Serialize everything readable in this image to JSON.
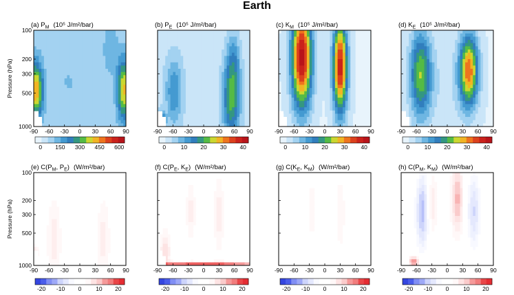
{
  "figure": {
    "title": "Earth",
    "ylabel": "Pressure (hPa)"
  },
  "colors": {
    "positive_low": "#dbeefb",
    "positive_mid": "#4aa3d8",
    "positive_green": "#3bb54a",
    "positive_yellow": "#f2e029",
    "positive_red": "#b8141a",
    "diverging_neg": "#1f2fd6",
    "diverging_pos": "#e0141e"
  },
  "chart_data": [
    {
      "type": "heatmap",
      "panel": "a",
      "label_prefix": "(a) ",
      "label_main": "P",
      "label_sub": "M",
      "label_args": "",
      "units": "(10⁵ J/m²/bar)",
      "x": [
        -90,
        -60,
        -30,
        0,
        30,
        60,
        90
      ],
      "y_ticks": [
        "100",
        "200",
        "300",
        "500",
        "1000"
      ],
      "colorbar": {
        "scale": "positive",
        "ticks": [
          "0",
          "150",
          "300",
          "450",
          "600"
        ],
        "range": [
          0,
          600
        ]
      }
    },
    {
      "type": "heatmap",
      "panel": "b",
      "label_prefix": "(b) ",
      "label_main": "P",
      "label_sub": "E",
      "label_args": "",
      "units": "(10⁵ J/m²/bar)",
      "x": [
        -90,
        -60,
        -30,
        0,
        30,
        60,
        90
      ],
      "y_ticks": [
        "100",
        "200",
        "300",
        "500",
        "1000"
      ],
      "colorbar": {
        "scale": "positive",
        "ticks": [
          "0",
          "10",
          "20",
          "30",
          "40"
        ],
        "range": [
          0,
          40
        ]
      }
    },
    {
      "type": "heatmap",
      "panel": "c",
      "label_prefix": "(c) ",
      "label_main": "K",
      "label_sub": "M",
      "label_args": "",
      "units": "(10⁵ J/m²/bar)",
      "x": [
        -90,
        -60,
        -30,
        0,
        30,
        60,
        90
      ],
      "y_ticks": [
        "100",
        "200",
        "300",
        "500",
        "1000"
      ],
      "colorbar": {
        "scale": "positive",
        "ticks": [
          "0",
          "10",
          "20",
          "30",
          "40"
        ],
        "range": [
          0,
          40
        ]
      }
    },
    {
      "type": "heatmap",
      "panel": "d",
      "label_prefix": "(d) ",
      "label_main": "K",
      "label_sub": "E",
      "label_args": "",
      "units": "(10⁵ J/m²/bar)",
      "x": [
        -90,
        -60,
        -30,
        0,
        30,
        60,
        90
      ],
      "y_ticks": [
        "100",
        "200",
        "300",
        "500",
        "1000"
      ],
      "colorbar": {
        "scale": "positive",
        "ticks": [
          "0",
          "10",
          "20",
          "30",
          "40"
        ],
        "range": [
          0,
          40
        ]
      }
    },
    {
      "type": "heatmap",
      "panel": "e",
      "label_prefix": "(e) ",
      "label_main": "C(P",
      "label_sub": "M",
      "label_args": ", P|E)",
      "units": "(W/m²/bar)",
      "x": [
        -90,
        -60,
        -30,
        0,
        30,
        60,
        90
      ],
      "y_ticks": [
        "100",
        "200",
        "300",
        "500",
        "1000"
      ],
      "colorbar": {
        "scale": "diverging",
        "ticks": [
          "-20",
          "-10",
          "0",
          "10",
          "20"
        ],
        "range": [
          -20,
          20
        ]
      }
    },
    {
      "type": "heatmap",
      "panel": "f",
      "label_prefix": "(f) ",
      "label_main": "C(P",
      "label_sub": "E",
      "label_args": ", K|E)",
      "units": "(W/m²/bar)",
      "x": [
        -90,
        -60,
        -30,
        0,
        30,
        60,
        90
      ],
      "y_ticks": [
        "100",
        "200",
        "300",
        "500",
        "1000"
      ],
      "colorbar": {
        "scale": "diverging",
        "ticks": [
          "-20",
          "-10",
          "0",
          "10",
          "20"
        ],
        "range": [
          -20,
          20
        ]
      }
    },
    {
      "type": "heatmap",
      "panel": "g",
      "label_prefix": "(g) ",
      "label_main": "C(K",
      "label_sub": "E",
      "label_args": ", K|M)",
      "units": "(W/m²/bar)",
      "x": [
        -90,
        -60,
        -30,
        0,
        30,
        60,
        90
      ],
      "y_ticks": [
        "100",
        "200",
        "300",
        "500",
        "1000"
      ],
      "colorbar": {
        "scale": "diverging",
        "ticks": [
          "-20",
          "-10",
          "0",
          "10",
          "20"
        ],
        "range": [
          -20,
          20
        ]
      }
    },
    {
      "type": "heatmap",
      "panel": "h",
      "label_prefix": "(h) ",
      "label_main": "C(P",
      "label_sub": "M",
      "label_args": ", K|M)",
      "units": "(W/m²/bar)",
      "x": [
        -90,
        -60,
        -30,
        0,
        30,
        60,
        90
      ],
      "y_ticks": [
        "100",
        "200",
        "300",
        "500",
        "1000"
      ],
      "colorbar": {
        "scale": "diverging",
        "ticks": [
          "-20",
          "-10",
          "0",
          "10",
          "20"
        ],
        "range": [
          -20,
          20
        ]
      }
    }
  ]
}
